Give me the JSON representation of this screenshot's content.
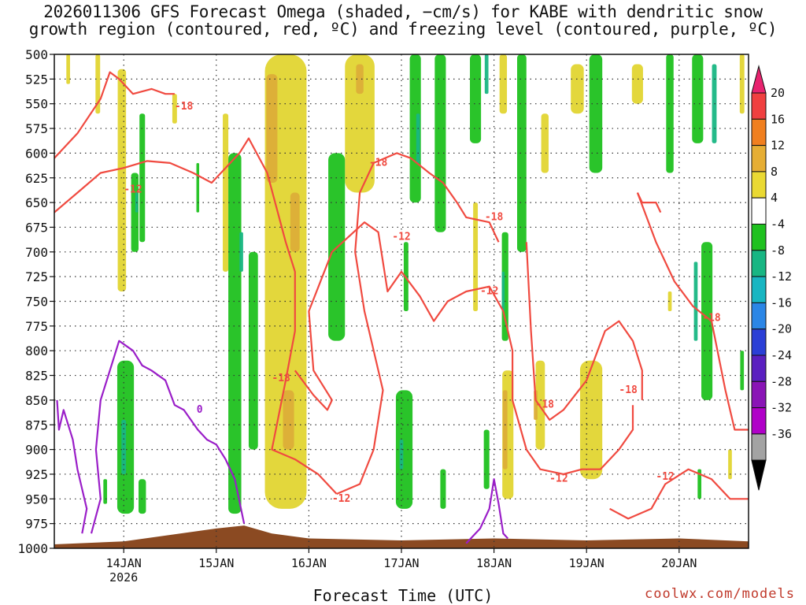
{
  "title_lines": [
    "2026011306 GFS Forecast Omega (shaded, −cm/s) for KABE with dendritic snow",
    "growth region (contoured, red, ºC) and freezing level (contoured, purple, ºC)"
  ],
  "x_axis_title": "Forecast Time (UTC)",
  "credit": "coolwx.com/models",
  "colors": {
    "snow_contour": "#f04a40",
    "freezing_contour": "#9a1ec8",
    "terrain": "#8b4a22",
    "grid": "#9a9a9a"
  },
  "chart_data": {
    "type": "heatmap",
    "title": "2026011306 GFS Forecast Omega (shaded, −cm/s) for KABE with dendritic snow growth region (contoured, red, ºC) and freezing level (contoured, purple, ºC)",
    "xlabel": "Forecast Time (UTC)",
    "ylabel": "",
    "x_tick_labels": [
      "14JAN",
      "15JAN",
      "16JAN",
      "17JAN",
      "18JAN",
      "19JAN",
      "20JAN"
    ],
    "x_tick_days": [
      14,
      15,
      16,
      17,
      18,
      19,
      20
    ],
    "x_sublabel": "2026",
    "xlim_days": [
      13.25,
      20.75
    ],
    "y_levels": [
      500,
      525,
      550,
      575,
      600,
      625,
      650,
      675,
      700,
      725,
      750,
      775,
      800,
      825,
      850,
      875,
      900,
      925,
      950,
      975,
      1000
    ],
    "ylim": [
      500,
      1000
    ],
    "y_inverted": true,
    "grid": true,
    "colorbar": {
      "labels": [
        20,
        16,
        12,
        8,
        4,
        -4,
        -8,
        -12,
        -16,
        -20,
        -24,
        -28,
        -32,
        -36
      ],
      "colors": [
        "#e8236f",
        "#f04040",
        "#f07f1f",
        "#e6ae35",
        "#ead933",
        "#ffffff",
        "#1fc11f",
        "#18b683",
        "#18b6c2",
        "#2b86e6",
        "#2b3fd6",
        "#5a1fc0",
        "#8a14b6",
        "#b000c8",
        "#a3a3a3",
        "#000000"
      ]
    },
    "omega_regions": [
      {
        "color": "#e2d532",
        "day": 13.4,
        "p_top": 500,
        "p_bot": 530,
        "width": 0.04
      },
      {
        "color": "#e2d532",
        "day": 13.72,
        "p_top": 500,
        "p_bot": 560,
        "width": 0.05
      },
      {
        "color": "#e2d532",
        "day": 13.98,
        "p_top": 515,
        "p_bot": 740,
        "width": 0.09
      },
      {
        "color": "#e2d532",
        "day": 14.55,
        "p_top": 540,
        "p_bot": 570,
        "width": 0.05
      },
      {
        "color": "#1fc11f",
        "day": 14.2,
        "p_top": 560,
        "p_bot": 690,
        "width": 0.06
      },
      {
        "color": "#1fc11f",
        "day": 14.12,
        "p_top": 620,
        "p_bot": 700,
        "width": 0.08
      },
      {
        "color": "#18b683",
        "day": 14.14,
        "p_top": 640,
        "p_bot": 660,
        "width": 0.03
      },
      {
        "color": "#1fc11f",
        "day": 14.02,
        "p_top": 810,
        "p_bot": 965,
        "width": 0.18
      },
      {
        "color": "#18b683",
        "day": 14.0,
        "p_top": 870,
        "p_bot": 925,
        "width": 0.05
      },
      {
        "color": "#1fc11f",
        "day": 14.2,
        "p_top": 930,
        "p_bot": 965,
        "width": 0.08
      },
      {
        "color": "#1fc11f",
        "day": 13.8,
        "p_top": 930,
        "p_bot": 955,
        "width": 0.04
      },
      {
        "color": "#1fc11f",
        "day": 14.8,
        "p_top": 610,
        "p_bot": 660,
        "width": 0.03
      },
      {
        "color": "#e2d532",
        "day": 15.1,
        "p_top": 560,
        "p_bot": 720,
        "width": 0.06
      },
      {
        "color": "#1fc11f",
        "day": 15.2,
        "p_top": 600,
        "p_bot": 965,
        "width": 0.14
      },
      {
        "color": "#18b683",
        "day": 15.27,
        "p_top": 680,
        "p_bot": 720,
        "width": 0.04
      },
      {
        "color": "#e2d532",
        "day": 15.75,
        "p_top": 500,
        "p_bot": 960,
        "width": 0.45
      },
      {
        "color": "#dcae38",
        "day": 15.6,
        "p_top": 520,
        "p_bot": 630,
        "width": 0.12
      },
      {
        "color": "#dcae38",
        "day": 15.85,
        "p_top": 640,
        "p_bot": 700,
        "width": 0.1
      },
      {
        "color": "#dcae38",
        "day": 15.78,
        "p_top": 840,
        "p_bot": 900,
        "width": 0.12
      },
      {
        "color": "#1fc11f",
        "day": 15.4,
        "p_top": 700,
        "p_bot": 900,
        "width": 0.1
      },
      {
        "color": "#e2d532",
        "day": 16.55,
        "p_top": 500,
        "p_bot": 640,
        "width": 0.32
      },
      {
        "color": "#dcae38",
        "day": 16.55,
        "p_top": 510,
        "p_bot": 540,
        "width": 0.08
      },
      {
        "color": "#1fc11f",
        "day": 16.3,
        "p_top": 600,
        "p_bot": 790,
        "width": 0.18
      },
      {
        "color": "#1fc11f",
        "day": 17.15,
        "p_top": 500,
        "p_bot": 650,
        "width": 0.12
      },
      {
        "color": "#18b683",
        "day": 17.18,
        "p_top": 560,
        "p_bot": 610,
        "width": 0.04
      },
      {
        "color": "#1fc11f",
        "day": 17.42,
        "p_top": 500,
        "p_bot": 680,
        "width": 0.12
      },
      {
        "color": "#1fc11f",
        "day": 17.05,
        "p_top": 690,
        "p_bot": 760,
        "width": 0.05
      },
      {
        "color": "#1fc11f",
        "day": 17.03,
        "p_top": 840,
        "p_bot": 960,
        "width": 0.18
      },
      {
        "color": "#18b683",
        "day": 17.0,
        "p_top": 890,
        "p_bot": 920,
        "width": 0.04
      },
      {
        "color": "#1fc11f",
        "day": 17.45,
        "p_top": 920,
        "p_bot": 960,
        "width": 0.06
      },
      {
        "color": "#1fc11f",
        "day": 17.8,
        "p_top": 500,
        "p_bot": 590,
        "width": 0.12
      },
      {
        "color": "#18b683",
        "day": 17.92,
        "p_top": 500,
        "p_bot": 540,
        "width": 0.04
      },
      {
        "color": "#e2d532",
        "day": 18.1,
        "p_top": 500,
        "p_bot": 560,
        "width": 0.08
      },
      {
        "color": "#1fc11f",
        "day": 18.3,
        "p_top": 500,
        "p_bot": 700,
        "width": 0.1
      },
      {
        "color": "#e2d532",
        "day": 17.8,
        "p_top": 650,
        "p_bot": 760,
        "width": 0.05
      },
      {
        "color": "#1fc11f",
        "day": 18.12,
        "p_top": 680,
        "p_bot": 790,
        "width": 0.07
      },
      {
        "color": "#18b683",
        "day": 18.1,
        "p_top": 720,
        "p_bot": 760,
        "width": 0.03
      },
      {
        "color": "#1fc11f",
        "day": 17.92,
        "p_top": 880,
        "p_bot": 940,
        "width": 0.06
      },
      {
        "color": "#e2d532",
        "day": 18.15,
        "p_top": 820,
        "p_bot": 950,
        "width": 0.12
      },
      {
        "color": "#dcae38",
        "day": 18.12,
        "p_top": 840,
        "p_bot": 920,
        "width": 0.05
      },
      {
        "color": "#e2d532",
        "day": 18.5,
        "p_top": 810,
        "p_bot": 900,
        "width": 0.1
      },
      {
        "color": "#dcae38",
        "day": 18.45,
        "p_top": 840,
        "p_bot": 870,
        "width": 0.04
      },
      {
        "color": "#e2d532",
        "day": 18.9,
        "p_top": 510,
        "p_bot": 560,
        "width": 0.14
      },
      {
        "color": "#1fc11f",
        "day": 19.1,
        "p_top": 500,
        "p_bot": 620,
        "width": 0.14
      },
      {
        "color": "#e2d532",
        "day": 19.55,
        "p_top": 510,
        "p_bot": 550,
        "width": 0.12
      },
      {
        "color": "#e2d532",
        "day": 18.55,
        "p_top": 560,
        "p_bot": 620,
        "width": 0.08
      },
      {
        "color": "#e2d532",
        "day": 19.05,
        "p_top": 810,
        "p_bot": 930,
        "width": 0.24
      },
      {
        "color": "#1fc11f",
        "day": 19.9,
        "p_top": 500,
        "p_bot": 620,
        "width": 0.08
      },
      {
        "color": "#e2d532",
        "day": 19.9,
        "p_top": 740,
        "p_bot": 760,
        "width": 0.04
      },
      {
        "color": "#1fc11f",
        "day": 20.2,
        "p_top": 500,
        "p_bot": 590,
        "width": 0.12
      },
      {
        "color": "#18b683",
        "day": 20.38,
        "p_top": 510,
        "p_bot": 590,
        "width": 0.05
      },
      {
        "color": "#1fc11f",
        "day": 20.3,
        "p_top": 690,
        "p_bot": 850,
        "width": 0.12
      },
      {
        "color": "#18b683",
        "day": 20.18,
        "p_top": 710,
        "p_bot": 790,
        "width": 0.04
      },
      {
        "color": "#1fc11f",
        "day": 20.22,
        "p_top": 920,
        "p_bot": 950,
        "width": 0.04
      },
      {
        "color": "#e2d532",
        "day": 20.55,
        "p_top": 900,
        "p_bot": 930,
        "width": 0.04
      },
      {
        "color": "#e2d532",
        "day": 20.68,
        "p_top": 500,
        "p_bot": 560,
        "width": 0.05
      },
      {
        "color": "#1fc11f",
        "day": 20.68,
        "p_top": 800,
        "p_bot": 840,
        "width": 0.04
      }
    ],
    "snow_growth_contours": [
      {
        "points": [
          [
            13.25,
            605
          ],
          [
            13.5,
            580
          ],
          [
            13.75,
            545
          ],
          [
            13.85,
            518
          ],
          [
            13.95,
            525
          ],
          [
            14.1,
            540
          ],
          [
            14.3,
            535
          ],
          [
            14.45,
            540
          ],
          [
            14.55,
            540
          ]
        ]
      },
      {
        "points": [
          [
            13.25,
            660
          ],
          [
            13.5,
            640
          ],
          [
            13.75,
            620
          ],
          [
            14.0,
            615
          ],
          [
            14.25,
            608
          ],
          [
            14.5,
            610
          ],
          [
            14.75,
            620
          ],
          [
            14.95,
            630
          ],
          [
            15.1,
            615
          ],
          [
            15.25,
            600
          ],
          [
            15.35,
            585
          ],
          [
            15.55,
            620
          ],
          [
            15.75,
            690
          ],
          [
            15.85,
            720
          ],
          [
            15.85,
            780
          ],
          [
            15.75,
            830
          ],
          [
            15.6,
            900
          ],
          [
            15.85,
            910
          ],
          [
            16.1,
            925
          ],
          [
            16.3,
            945
          ]
        ]
      },
      {
        "points": [
          [
            16.3,
            945
          ],
          [
            16.55,
            935
          ],
          [
            16.7,
            900
          ],
          [
            16.8,
            840
          ],
          [
            16.6,
            760
          ],
          [
            16.5,
            700
          ],
          [
            16.55,
            640
          ],
          [
            16.7,
            610
          ],
          [
            16.95,
            600
          ],
          [
            17.1,
            605
          ],
          [
            17.3,
            620
          ],
          [
            17.45,
            630
          ],
          [
            17.6,
            650
          ],
          [
            17.7,
            665
          ],
          [
            17.95,
            670
          ],
          [
            18.05,
            690
          ]
        ]
      },
      {
        "points": [
          [
            15.85,
            820
          ],
          [
            16.05,
            845
          ],
          [
            16.2,
            860
          ],
          [
            16.25,
            850
          ],
          [
            16.05,
            820
          ],
          [
            16.0,
            760
          ],
          [
            16.25,
            700
          ],
          [
            16.6,
            670
          ],
          [
            16.75,
            680
          ],
          [
            16.85,
            740
          ],
          [
            17.0,
            720
          ],
          [
            17.2,
            745
          ],
          [
            17.35,
            770
          ],
          [
            17.5,
            750
          ],
          [
            17.7,
            740
          ],
          [
            17.95,
            735
          ],
          [
            18.1,
            760
          ],
          [
            18.2,
            800
          ],
          [
            18.2,
            850
          ],
          [
            18.35,
            900
          ],
          [
            18.5,
            920
          ],
          [
            18.75,
            925
          ],
          [
            18.95,
            920
          ],
          [
            19.15,
            920
          ],
          [
            19.35,
            900
          ],
          [
            19.5,
            880
          ],
          [
            19.5,
            855
          ]
        ]
      },
      {
        "points": [
          [
            18.35,
            690
          ],
          [
            18.4,
            780
          ],
          [
            18.45,
            850
          ],
          [
            18.6,
            870
          ],
          [
            18.75,
            860
          ],
          [
            19.0,
            830
          ],
          [
            19.2,
            780
          ],
          [
            19.35,
            770
          ],
          [
            19.5,
            790
          ],
          [
            19.6,
            820
          ],
          [
            19.6,
            850
          ]
        ]
      },
      {
        "points": [
          [
            19.55,
            640
          ],
          [
            19.75,
            690
          ],
          [
            19.95,
            730
          ],
          [
            20.15,
            755
          ],
          [
            20.35,
            770
          ],
          [
            20.5,
            840
          ],
          [
            20.6,
            880
          ],
          [
            20.75,
            880
          ]
        ]
      },
      {
        "points": [
          [
            19.25,
            960
          ],
          [
            19.45,
            970
          ],
          [
            19.7,
            960
          ],
          [
            19.85,
            935
          ],
          [
            20.1,
            920
          ],
          [
            20.35,
            930
          ],
          [
            20.55,
            950
          ],
          [
            20.75,
            950
          ]
        ]
      },
      {
        "points": [
          [
            19.55,
            640
          ],
          [
            19.6,
            650
          ],
          [
            19.75,
            650
          ],
          [
            19.8,
            660
          ]
        ]
      }
    ],
    "snow_growth_labels": [
      {
        "text": "-18",
        "day": 14.65,
        "p": 553
      },
      {
        "text": "-12",
        "day": 14.1,
        "p": 637
      },
      {
        "text": "-18",
        "day": 16.75,
        "p": 610
      },
      {
        "text": "-12",
        "day": 17.0,
        "p": 685
      },
      {
        "text": "-18",
        "day": 18.0,
        "p": 665
      },
      {
        "text": "-12",
        "day": 17.95,
        "p": 740
      },
      {
        "text": "-18",
        "day": 15.7,
        "p": 828
      },
      {
        "text": "-12",
        "day": 16.35,
        "p": 950
      },
      {
        "text": "-18",
        "day": 18.55,
        "p": 855
      },
      {
        "text": "-12",
        "day": 18.7,
        "p": 930
      },
      {
        "text": "-18",
        "day": 19.45,
        "p": 840
      },
      {
        "text": "-12",
        "day": 19.85,
        "p": 928
      },
      {
        "text": "-18",
        "day": 20.35,
        "p": 767
      }
    ],
    "freezing_contours": [
      {
        "points": [
          [
            13.28,
            850
          ],
          [
            13.3,
            880
          ],
          [
            13.35,
            860
          ],
          [
            13.45,
            890
          ],
          [
            13.5,
            920
          ],
          [
            13.6,
            960
          ],
          [
            13.55,
            985
          ]
        ]
      },
      {
        "points": [
          [
            13.65,
            985
          ],
          [
            13.75,
            950
          ],
          [
            13.7,
            900
          ],
          [
            13.75,
            850
          ],
          [
            13.85,
            820
          ],
          [
            13.95,
            790
          ],
          [
            14.1,
            800
          ],
          [
            14.2,
            815
          ],
          [
            14.3,
            820
          ],
          [
            14.45,
            830
          ],
          [
            14.55,
            855
          ],
          [
            14.65,
            860
          ],
          [
            14.8,
            880
          ],
          [
            14.9,
            890
          ],
          [
            15.0,
            895
          ],
          [
            15.1,
            910
          ],
          [
            15.2,
            930
          ],
          [
            15.3,
            975
          ]
        ]
      },
      {
        "points": [
          [
            17.7,
            995
          ],
          [
            17.85,
            980
          ],
          [
            17.95,
            960
          ],
          [
            18.0,
            930
          ],
          [
            18.05,
            955
          ],
          [
            18.1,
            985
          ],
          [
            18.15,
            990
          ]
        ]
      }
    ],
    "freezing_labels": [
      {
        "text": "0",
        "day": 14.82,
        "p": 860
      }
    ],
    "terrain": {
      "days": [
        13.25,
        14.0,
        15.0,
        15.3,
        15.6,
        16.0,
        17.0,
        18.0,
        19.0,
        20.0,
        20.75
      ],
      "pressures": [
        996,
        993,
        980,
        977,
        985,
        990,
        992,
        990,
        992,
        990,
        993
      ]
    }
  }
}
